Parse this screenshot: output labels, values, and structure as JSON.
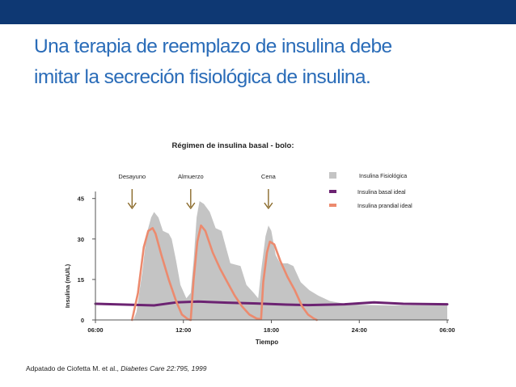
{
  "slide": {
    "title_line1": "Una terapia de reemplazo de insulina debe",
    "title_line2": "imitar la secreción fisiológica de insulina.",
    "citation_prefix": "Adpatado de Ciofetta M. et al., ",
    "citation_journal": "Diabetes Care 22:795, 1999"
  },
  "colors": {
    "top_bar": "#0e3873",
    "title": "#2a6cb8",
    "physiological": "#c4c4c4",
    "basal": "#6c2372",
    "prandial": "#ec8a6e",
    "meal_arrow": "#8a6a2a"
  },
  "chart_data": {
    "type": "area",
    "title": "Régimen de insulina basal - bolo:",
    "xlabel": "Tiempo",
    "ylabel": "Insulina (mU/L)",
    "x_ticks": [
      {
        "hour": 6,
        "label": "06:00"
      },
      {
        "hour": 12,
        "label": "12:00"
      },
      {
        "hour": 18,
        "label": "18:00"
      },
      {
        "hour": 24,
        "label": "24:00"
      },
      {
        "hour": 30,
        "label": "06:00"
      }
    ],
    "y_ticks": [
      0,
      15,
      30,
      45
    ],
    "xlim": [
      6,
      30
    ],
    "ylim": [
      0,
      50
    ],
    "meals": [
      {
        "label": "Desayuno",
        "hour": 8.5
      },
      {
        "label": "Almuerzo",
        "hour": 12.5
      },
      {
        "label": "Cena",
        "hour": 17.8
      }
    ],
    "legend_position": "top-right",
    "series": [
      {
        "name": "Insulina Fisiológica",
        "style": "area",
        "points": [
          [
            6,
            0
          ],
          [
            8.6,
            0
          ],
          [
            8.8,
            3
          ],
          [
            9.2,
            18
          ],
          [
            9.5,
            32
          ],
          [
            9.8,
            38
          ],
          [
            10.0,
            40
          ],
          [
            10.3,
            38
          ],
          [
            10.6,
            33
          ],
          [
            11.0,
            32
          ],
          [
            11.2,
            30
          ],
          [
            11.5,
            22
          ],
          [
            11.8,
            13
          ],
          [
            12.2,
            8
          ],
          [
            12.5,
            10
          ],
          [
            12.7,
            22
          ],
          [
            12.9,
            38
          ],
          [
            13.1,
            44
          ],
          [
            13.4,
            43
          ],
          [
            13.8,
            40
          ],
          [
            14.2,
            34
          ],
          [
            14.6,
            33
          ],
          [
            14.9,
            27
          ],
          [
            15.2,
            21
          ],
          [
            15.9,
            20
          ],
          [
            16.3,
            13
          ],
          [
            16.8,
            10
          ],
          [
            17.1,
            8
          ],
          [
            17.3,
            18
          ],
          [
            17.6,
            31
          ],
          [
            17.8,
            35
          ],
          [
            18.0,
            33
          ],
          [
            18.3,
            24
          ],
          [
            18.6,
            21
          ],
          [
            19.1,
            21
          ],
          [
            19.5,
            20
          ],
          [
            20.0,
            14
          ],
          [
            20.6,
            11
          ],
          [
            21.2,
            9
          ],
          [
            22,
            7
          ],
          [
            23,
            6
          ],
          [
            24,
            5.6
          ],
          [
            26,
            5.4
          ],
          [
            28,
            5.4
          ],
          [
            30,
            5.4
          ]
        ]
      },
      {
        "name": "Insulina basal ideal",
        "style": "line",
        "points": [
          [
            6,
            6
          ],
          [
            8,
            5.7
          ],
          [
            10,
            5.4
          ],
          [
            11.5,
            6.5
          ],
          [
            13,
            6.8
          ],
          [
            15,
            6.4
          ],
          [
            17,
            6.1
          ],
          [
            19,
            5.7
          ],
          [
            20.5,
            5.5
          ],
          [
            23,
            5.8
          ],
          [
            25,
            6.5
          ],
          [
            27,
            6
          ],
          [
            30,
            5.8
          ]
        ]
      },
      {
        "name": "Insulina prandial ideal",
        "style": "line",
        "points": [
          [
            8.5,
            0
          ],
          [
            8.9,
            10
          ],
          [
            9.3,
            27
          ],
          [
            9.6,
            33
          ],
          [
            9.9,
            34
          ],
          [
            10.1,
            32
          ],
          [
            10.5,
            24
          ],
          [
            11,
            15
          ],
          [
            11.5,
            7
          ],
          [
            11.9,
            2
          ],
          [
            12.3,
            0.3
          ],
          [
            12.5,
            0
          ],
          [
            12.7,
            15
          ],
          [
            12.95,
            29
          ],
          [
            13.2,
            35
          ],
          [
            13.5,
            33
          ],
          [
            14,
            25
          ],
          [
            14.5,
            19
          ],
          [
            15,
            14
          ],
          [
            15.5,
            9
          ],
          [
            16,
            5
          ],
          [
            16.5,
            2
          ],
          [
            17,
            0.5
          ],
          [
            17.3,
            0.3
          ],
          [
            17.45,
            14
          ],
          [
            17.7,
            25
          ],
          [
            17.9,
            29
          ],
          [
            18.2,
            28
          ],
          [
            18.6,
            22
          ],
          [
            19.1,
            16
          ],
          [
            19.6,
            11
          ],
          [
            20.1,
            5
          ],
          [
            20.5,
            2
          ],
          [
            20.9,
            0.5
          ],
          [
            21.1,
            0
          ]
        ]
      }
    ]
  }
}
